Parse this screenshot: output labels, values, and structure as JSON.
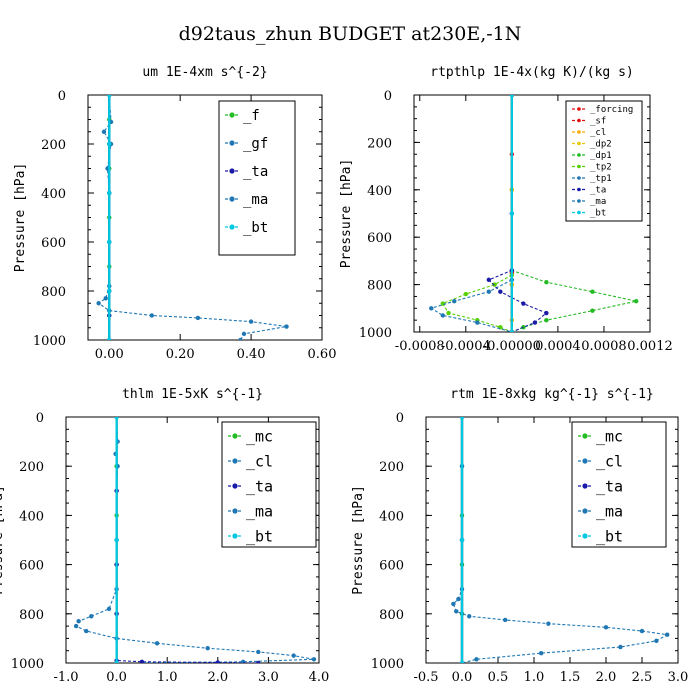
{
  "suptitle": "d92taus_zhun  BUDGET at230E,-1N",
  "colors": {
    "green": "#22bb22",
    "blue_dash": "#1f77b4",
    "navy": "#1a1aa8",
    "cyan": "#00c8e0",
    "red": "#e01010",
    "orange": "#ffaa00",
    "yellow": "#e8c800",
    "lime": "#55d000"
  },
  "chart_data": [
    {
      "type": "line",
      "title": "um  1E-4xm s^{-2}",
      "ylabel": "Pressure [hPa]",
      "xlim": [
        -0.06,
        0.6
      ],
      "ylim": [
        1000,
        0
      ],
      "xticks": [
        -0.0,
        0.2,
        0.4,
        0.6
      ],
      "xticklabels": [
        "0.00",
        "0.20",
        "0.40",
        "0.60"
      ],
      "yticks": [
        0,
        200,
        400,
        600,
        800,
        1000
      ],
      "legend": "top-right",
      "series": [
        {
          "name": "_f",
          "color": "#22bb22",
          "x": [
            0,
            0,
            0,
            0,
            0,
            0,
            0,
            0,
            0,
            0,
            0
          ],
          "y": [
            0,
            100,
            200,
            300,
            400,
            500,
            600,
            700,
            800,
            900,
            1000
          ]
        },
        {
          "name": "_gf",
          "color": "#1f77b4",
          "x": [
            0,
            0.005,
            -0.015,
            0.005,
            -0.005,
            0.0,
            0.0,
            0.0,
            -0.01,
            -0.03,
            0.0,
            0.12,
            0.25,
            0.4,
            0.5,
            0.38,
            0.37
          ],
          "y": [
            0,
            110,
            150,
            200,
            300,
            400,
            600,
            780,
            830,
            850,
            880,
            900,
            910,
            925,
            945,
            975,
            1000
          ]
        },
        {
          "name": "_ta",
          "color": "#1a1aa8",
          "x": [
            0,
            0,
            0,
            0,
            0,
            0,
            0
          ],
          "y": [
            0,
            200,
            400,
            600,
            800,
            900,
            1000
          ]
        },
        {
          "name": "_ma",
          "color": "#1f77b4",
          "x": [
            0,
            0,
            0,
            0,
            0,
            0
          ],
          "y": [
            0,
            200,
            400,
            600,
            800,
            1000
          ]
        },
        {
          "name": "_bt",
          "color": "#00c8e0",
          "x": [
            0,
            0,
            0,
            0,
            0,
            0
          ],
          "y": [
            0,
            200,
            400,
            600,
            800,
            1000
          ]
        }
      ]
    },
    {
      "type": "line",
      "title": "rtpthlp  1E-4x(kg K)/(kg s)",
      "ylabel": "Pressure [hPa]",
      "xlim": [
        -0.00085,
        0.0012
      ],
      "ylim": [
        1000,
        0
      ],
      "xticks": [
        -0.0008,
        -0.0004,
        0.0,
        0.0004,
        0.0008,
        0.0012
      ],
      "xticklabels": [
        "-0.0008",
        "-0.0004",
        "-0.00000",
        "0.0004",
        "0.0008",
        "0.0012"
      ],
      "yticks": [
        0,
        200,
        400,
        600,
        800,
        1000
      ],
      "legend": "top-right",
      "series": [
        {
          "name": "_forcing",
          "color": "#e01010",
          "x": [
            0,
            0,
            0,
            0,
            0
          ],
          "y": [
            0,
            250,
            500,
            750,
            1000
          ]
        },
        {
          "name": "_sf",
          "color": "#e01010",
          "x": [
            0,
            0,
            0,
            0
          ],
          "y": [
            0,
            400,
            800,
            1000
          ]
        },
        {
          "name": "_cl",
          "color": "#ffaa00",
          "x": [
            0,
            0,
            0,
            0,
            0
          ],
          "y": [
            0,
            400,
            800,
            950,
            1000
          ]
        },
        {
          "name": "_dp2",
          "color": "#e8c800",
          "x": [
            0,
            0,
            0,
            0
          ],
          "y": [
            0,
            400,
            800,
            1000
          ]
        },
        {
          "name": "_dp1",
          "color": "#22bb22",
          "x": [
            0,
            0,
            0.0003,
            0.0007,
            0.00108,
            0.0007,
            0.0003,
            0.0001,
            0
          ],
          "y": [
            0,
            740,
            790,
            830,
            870,
            910,
            950,
            980,
            1000
          ]
        },
        {
          "name": "_tp2",
          "color": "#55d000",
          "x": [
            0,
            0,
            -0.00015,
            -0.0004,
            -0.0006,
            -0.00055,
            -0.0003,
            -0.0001,
            0
          ],
          "y": [
            0,
            760,
            800,
            840,
            880,
            920,
            950,
            980,
            1000
          ]
        },
        {
          "name": "_tp1",
          "color": "#1f77b4",
          "x": [
            0,
            0,
            -0.0002,
            -0.0005,
            -0.0007,
            -0.0006,
            -0.0003,
            0
          ],
          "y": [
            0,
            780,
            830,
            870,
            900,
            930,
            960,
            1000
          ]
        },
        {
          "name": "_ta",
          "color": "#1a1aa8",
          "x": [
            0,
            0,
            -0.0002,
            -0.0001,
            0.0001,
            0.0003,
            0.0002,
            0
          ],
          "y": [
            0,
            740,
            780,
            830,
            880,
            920,
            960,
            1000
          ]
        },
        {
          "name": "_ma",
          "color": "#1f77b4",
          "x": [
            0,
            0,
            0
          ],
          "y": [
            0,
            500,
            1000
          ]
        },
        {
          "name": "_bt",
          "color": "#00c8e0",
          "x": [
            0,
            0,
            0
          ],
          "y": [
            0,
            500,
            1000
          ]
        }
      ]
    },
    {
      "type": "line",
      "title": "thlm  1E-5xK s^{-1}",
      "ylabel": "Pressure [hPa]",
      "xlim": [
        -1.0,
        4.0
      ],
      "ylim": [
        1000,
        0
      ],
      "xticks": [
        -1.0,
        0.0,
        1.0,
        2.0,
        3.0,
        4.0
      ],
      "xticklabels": [
        "-1.0",
        "0.0",
        "1.0",
        "2.0",
        "3.0",
        "4.0"
      ],
      "yticks": [
        0,
        200,
        400,
        600,
        800,
        1000
      ],
      "legend": "top-right",
      "series": [
        {
          "name": "_mc",
          "color": "#22bb22",
          "x": [
            0,
            0,
            0,
            0,
            0,
            0
          ],
          "y": [
            0,
            200,
            400,
            600,
            800,
            1000
          ]
        },
        {
          "name": "_cl",
          "color": "#1f77b4",
          "x": [
            0,
            0.02,
            -0.02,
            0.02,
            0,
            0,
            0,
            -0.15,
            -0.5,
            -0.75,
            -0.8,
            -0.6,
            0.0,
            0.8,
            1.8,
            2.8,
            3.5,
            3.9,
            2.5,
            0.5
          ],
          "y": [
            0,
            100,
            150,
            200,
            300,
            500,
            700,
            780,
            810,
            830,
            850,
            870,
            900,
            920,
            940,
            955,
            970,
            985,
            995,
            1000
          ]
        },
        {
          "name": "_ta",
          "color": "#1a1aa8",
          "x": [
            0,
            0,
            0,
            0,
            0,
            0.5,
            2.0,
            2.8
          ],
          "y": [
            0,
            300,
            600,
            800,
            990,
            995,
            998,
            1000
          ]
        },
        {
          "name": "_ma",
          "color": "#1f77b4",
          "x": [
            0,
            0,
            0
          ],
          "y": [
            0,
            500,
            1000
          ]
        },
        {
          "name": "_bt",
          "color": "#00c8e0",
          "x": [
            0,
            0,
            0
          ],
          "y": [
            0,
            500,
            1000
          ]
        }
      ]
    },
    {
      "type": "line",
      "title": "rtm  1E-8xkg kg^{-1} s^{-1}",
      "ylabel": "Pressure [hPa]",
      "xlim": [
        -0.5,
        3.0
      ],
      "ylim": [
        1000,
        0
      ],
      "xticks": [
        -0.5,
        0.0,
        0.5,
        1.0,
        1.5,
        2.0,
        2.5,
        3.0
      ],
      "xticklabels": [
        "-0.5",
        "0.0",
        "0.5",
        "1.0",
        "1.5",
        "2.0",
        "2.5",
        "3.0"
      ],
      "yticks": [
        0,
        200,
        400,
        600,
        800,
        1000
      ],
      "legend": "top-right",
      "series": [
        {
          "name": "_mc",
          "color": "#22bb22",
          "x": [
            0,
            0,
            0,
            0,
            0,
            0
          ],
          "y": [
            0,
            200,
            400,
            600,
            800,
            1000
          ]
        },
        {
          "name": "_cl",
          "color": "#1f77b4",
          "x": [
            0,
            0,
            0,
            0,
            -0.05,
            -0.12,
            -0.08,
            0.1,
            0.6,
            1.2,
            2.0,
            2.5,
            2.85,
            2.7,
            2.2,
            1.1,
            0.2,
            0
          ],
          "y": [
            0,
            200,
            500,
            700,
            740,
            760,
            790,
            810,
            825,
            840,
            855,
            870,
            885,
            910,
            935,
            960,
            985,
            1000
          ]
        },
        {
          "name": "_ta",
          "color": "#1a1aa8",
          "x": [
            0,
            0,
            0
          ],
          "y": [
            0,
            500,
            1000
          ]
        },
        {
          "name": "_ma",
          "color": "#1f77b4",
          "x": [
            0,
            0,
            0
          ],
          "y": [
            0,
            500,
            1000
          ]
        },
        {
          "name": "_bt",
          "color": "#00c8e0",
          "x": [
            0,
            0,
            0
          ],
          "y": [
            0,
            500,
            1000
          ]
        }
      ]
    }
  ]
}
